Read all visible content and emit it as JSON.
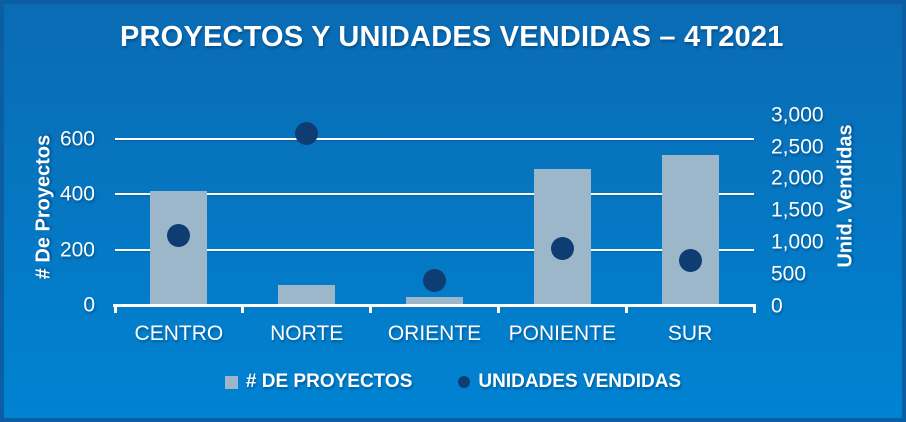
{
  "title": "PROYECTOS Y UNIDADES VENDIDAS – 4T2021",
  "colors": {
    "background_top": "#0a6bb3",
    "background_bottom": "#0083d2",
    "frame_border": "#0a5ea1",
    "bar": "#9cb7c9",
    "point": "#0e3d74",
    "gridline": "#ffffff",
    "text": "#ffffff"
  },
  "chart_data": {
    "type": "bar",
    "subtype": "combo bar + scatter, dual axis",
    "title": "PROYECTOS Y UNIDADES VENDIDAS – 4T2021",
    "categories": [
      "CENTRO",
      "NORTE",
      "ORIENTE",
      "PONIENTE",
      "SUR"
    ],
    "series": [
      {
        "name": "# DE PROYECTOS",
        "type": "bar",
        "axis": "left",
        "marker": "square",
        "values": [
          410,
          70,
          25,
          490,
          540
        ]
      },
      {
        "name": "UNIDADES VENDIDAS",
        "type": "scatter",
        "axis": "right",
        "marker": "circle",
        "values": [
          1100,
          2700,
          400,
          900,
          700
        ]
      }
    ],
    "left_axis": {
      "label": "# De Proyectos",
      "ticks": [
        0,
        200,
        400,
        600
      ],
      "range": [
        0,
        690
      ]
    },
    "right_axis": {
      "label": "Unid. Vendidas",
      "ticks": [
        0,
        500,
        1000,
        1500,
        2000,
        2500,
        3000
      ],
      "range": [
        0,
        3000
      ]
    },
    "grid": "horizontal white gridlines at left-axis ticks",
    "legend_position": "bottom"
  },
  "legend": {
    "items": [
      {
        "label": "# DE PROYECTOS",
        "marker": "square"
      },
      {
        "label": "UNIDADES VENDIDAS",
        "marker": "circle"
      }
    ]
  }
}
